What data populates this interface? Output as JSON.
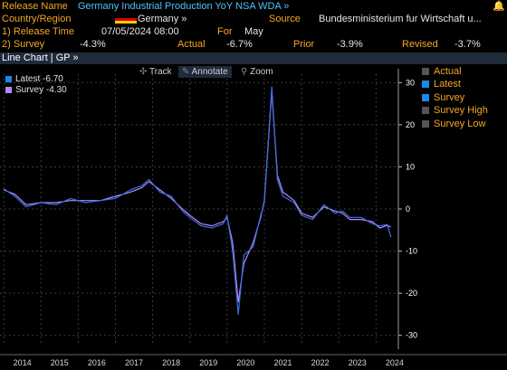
{
  "header": {
    "release_name_label": "Release Name",
    "release_name_value": "Germany Industrial Production YoY NSA WDA »",
    "country_label": "Country/Region",
    "country_value": "Germany »",
    "source_label": "Source",
    "source_value": "Bundesministerium fur Wirtschaft u...",
    "release_time_label": "1) Release Time",
    "release_time_value": "07/05/2024 08:00",
    "for_label": "For",
    "for_value": "May",
    "survey_label": "2) Survey",
    "survey_value": "-4.3%",
    "actual_label": "Actual",
    "actual_value": "-6.7%",
    "prior_label": "Prior",
    "prior_value": "-3.9%",
    "revised_label": "Revised",
    "revised_value": "-3.7%"
  },
  "tab_bar": {
    "label": "Line Chart | GP »"
  },
  "toolbar": {
    "track": "Track",
    "annotate": "Annotate",
    "zoom": "Zoom"
  },
  "legend": [
    {
      "label": "Latest",
      "value": "-6.70",
      "color": "#1e88e5"
    },
    {
      "label": "Survey",
      "value": "-4.30",
      "color": "#b388ff"
    }
  ],
  "series_menu": [
    {
      "label": "Actual",
      "checked": false
    },
    {
      "label": "Latest",
      "checked": true
    },
    {
      "label": "Survey",
      "checked": true
    },
    {
      "label": "Survey High",
      "checked": false
    },
    {
      "label": "Survey Low",
      "checked": false
    }
  ],
  "chart_data": {
    "type": "line",
    "x_ticks": [
      "2014",
      "2015",
      "2016",
      "2017",
      "2018",
      "2019",
      "2020",
      "2021",
      "2022",
      "2023",
      "2024"
    ],
    "y_ticks": [
      30,
      20,
      10,
      0,
      -10,
      -20,
      -30
    ],
    "ylim": [
      -32,
      32
    ],
    "xlim": [
      2013.9,
      2024.6
    ],
    "series": [
      {
        "name": "Latest",
        "color": "#3d6fe0",
        "x": [
          2014.0,
          2014.3,
          2014.6,
          2015.0,
          2015.4,
          2015.8,
          2016.2,
          2016.6,
          2017.0,
          2017.4,
          2017.7,
          2017.9,
          2018.2,
          2018.5,
          2018.8,
          2019.0,
          2019.3,
          2019.6,
          2019.9,
          2020.0,
          2020.15,
          2020.3,
          2020.45,
          2020.7,
          2020.9,
          2021.0,
          2021.2,
          2021.35,
          2021.5,
          2021.8,
          2022.0,
          2022.3,
          2022.6,
          2022.9,
          2023.1,
          2023.3,
          2023.6,
          2023.9,
          2024.1,
          2024.3,
          2024.4
        ],
        "y": [
          4.8,
          3.0,
          0.5,
          1.5,
          1.0,
          2.5,
          1.5,
          2.0,
          2.5,
          4.5,
          5.5,
          7.0,
          4.0,
          3.0,
          -0.5,
          -2.0,
          -4.0,
          -4.5,
          -3.5,
          -1.5,
          -10.0,
          -25.0,
          -11.0,
          -9.0,
          -1.5,
          1.5,
          29.0,
          7.0,
          3.0,
          1.5,
          -1.5,
          -2.5,
          1.0,
          -1.0,
          -0.5,
          -2.0,
          -2.0,
          -3.5,
          -4.0,
          -3.7,
          -6.7
        ]
      },
      {
        "name": "Survey",
        "color": "#b388ff",
        "x": [
          2014.0,
          2014.3,
          2014.6,
          2015.0,
          2015.4,
          2015.8,
          2016.2,
          2016.6,
          2017.0,
          2017.4,
          2017.7,
          2017.9,
          2018.2,
          2018.5,
          2018.8,
          2019.0,
          2019.3,
          2019.6,
          2019.9,
          2020.0,
          2020.15,
          2020.3,
          2020.45,
          2020.7,
          2020.9,
          2021.0,
          2021.2,
          2021.35,
          2021.5,
          2021.8,
          2022.0,
          2022.3,
          2022.6,
          2022.9,
          2023.1,
          2023.3,
          2023.6,
          2023.9,
          2024.1,
          2024.3,
          2024.4
        ],
        "y": [
          4.5,
          3.5,
          1.0,
          1.5,
          1.5,
          2.0,
          2.0,
          2.0,
          3.0,
          4.0,
          5.0,
          6.5,
          4.5,
          2.5,
          0.0,
          -1.5,
          -3.5,
          -4.0,
          -3.0,
          -2.0,
          -8.0,
          -22.0,
          -13.0,
          -8.0,
          -2.0,
          2.0,
          28.0,
          8.0,
          4.0,
          2.0,
          -1.0,
          -2.0,
          0.5,
          -0.5,
          -1.0,
          -2.5,
          -2.5,
          -3.0,
          -4.5,
          -3.9,
          -4.3
        ]
      }
    ]
  }
}
